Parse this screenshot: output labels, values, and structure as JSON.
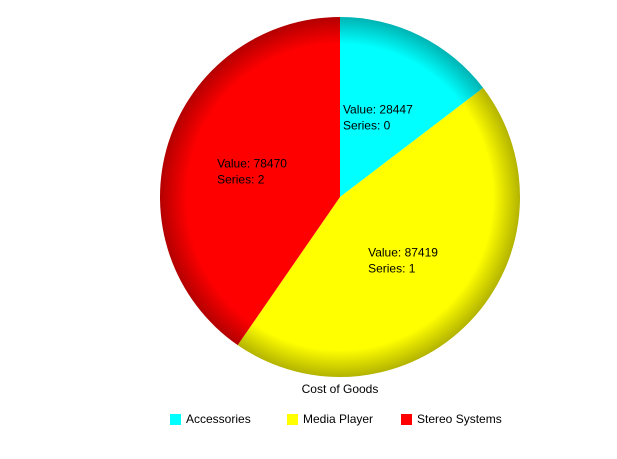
{
  "chart_data": {
    "type": "pie",
    "title": "Cost of Goods",
    "categories": [
      "Accessories",
      "Media Player",
      "Stereo Systems"
    ],
    "values": [
      28447,
      87419,
      78470
    ],
    "value_labels": [
      "Value: 28447",
      "Value: 87419",
      "Value: 78470"
    ],
    "series_labels": [
      "Series: 0",
      "Series: 1",
      "Series: 2"
    ],
    "colors": [
      "#00ffff",
      "#ffff00",
      "#ff0000"
    ],
    "legend": "bottom"
  }
}
